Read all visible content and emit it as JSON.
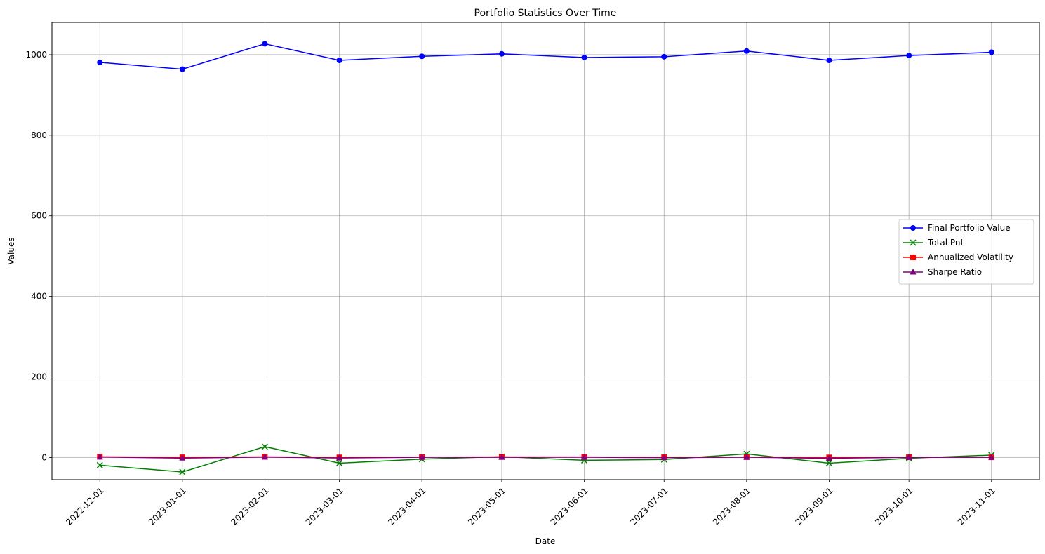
{
  "chart_data": {
    "type": "line",
    "title": "Portfolio Statistics Over Time",
    "xlabel": "Date",
    "ylabel": "Values",
    "x": [
      "2022-12-01",
      "2023-01-01",
      "2023-02-01",
      "2023-03-01",
      "2023-04-01",
      "2023-05-01",
      "2023-06-01",
      "2023-07-01",
      "2023-08-01",
      "2023-09-01",
      "2023-10-01",
      "2023-11-01"
    ],
    "xlim": [
      "2022-11-13",
      "2023-11-19"
    ],
    "ylim": [
      -55,
      1080
    ],
    "yticks": [
      0,
      200,
      400,
      600,
      800,
      1000
    ],
    "grid": true,
    "legend_position": "center-right",
    "series": [
      {
        "name": "Final Portfolio Value",
        "color": "#0000ff",
        "marker": "circle",
        "values": [
          981,
          964,
          1027,
          986,
          996,
          1002,
          993,
          995,
          1009,
          986,
          998,
          1006
        ]
      },
      {
        "name": "Total PnL",
        "color": "#008000",
        "marker": "x",
        "values": [
          -19,
          -36,
          27,
          -14,
          -4,
          2,
          -7,
          -5,
          9,
          -14,
          -2,
          6
        ]
      },
      {
        "name": "Annualized Volatility",
        "color": "#ff0000",
        "marker": "square",
        "values": [
          1.8,
          0.5,
          1.6,
          0.3,
          1.1,
          1.4,
          1.3,
          0.6,
          0.9,
          0.2,
          0.8,
          0.5
        ]
      },
      {
        "name": "Sharpe Ratio",
        "color": "#800080",
        "marker": "triangle",
        "values": [
          1.2,
          -1.5,
          1.0,
          -1.2,
          0.4,
          0.5,
          0.6,
          -0.3,
          0.6,
          -2.0,
          0.3,
          0.4
        ]
      }
    ]
  }
}
